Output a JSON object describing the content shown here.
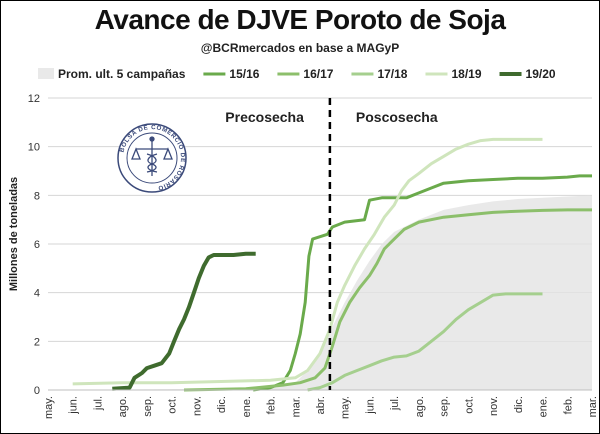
{
  "chart_data": {
    "type": "line",
    "title": "Avance de DJVE Poroto de Soja",
    "subtitle": "@BCRmercados en base a MAGyP",
    "ylabel": "Millones de toneladas",
    "xlabel": "",
    "ylim": [
      0,
      12
    ],
    "yticks": [
      "0",
      "2",
      "4",
      "6",
      "8",
      "10",
      "12"
    ],
    "months": [
      "may.",
      "jun.",
      "jul.",
      "ago.",
      "sep.",
      "oct.",
      "nov.",
      "dic.",
      "ene.",
      "feb.",
      "mar.",
      "abr.",
      "may.",
      "jun.",
      "jul.",
      "ago.",
      "sep.",
      "oct.",
      "nov.",
      "dic.",
      "ene.",
      "feb.",
      "mar."
    ],
    "phases": {
      "before": "Precosecha",
      "after": "Poscosecha",
      "divider_month_index": 11.4
    },
    "grid": "horizontal",
    "legend_position": "top",
    "series": [
      {
        "name": "Prom. ult. 5 campañas",
        "kind": "area",
        "color": "#e9e9e9",
        "points": [
          [
            0,
            0
          ],
          [
            8,
            0.05
          ],
          [
            9,
            0.1
          ],
          [
            10,
            0.3
          ],
          [
            10.5,
            0.8
          ],
          [
            11,
            1.6
          ],
          [
            11.5,
            2.6
          ],
          [
            12,
            3.6
          ],
          [
            12.5,
            4.5
          ],
          [
            13,
            5.3
          ],
          [
            13.5,
            6.0
          ],
          [
            14,
            6.5
          ],
          [
            15,
            7.0
          ],
          [
            16,
            7.4
          ],
          [
            17,
            7.6
          ],
          [
            18,
            7.75
          ],
          [
            19,
            7.85
          ],
          [
            20,
            7.9
          ],
          [
            21,
            7.95
          ],
          [
            22,
            8.0
          ]
        ]
      },
      {
        "name": "15/16",
        "kind": "line",
        "color": "#6aaa4b",
        "points": [
          [
            8.3,
            0
          ],
          [
            9,
            0.1
          ],
          [
            9.5,
            0.3
          ],
          [
            9.8,
            0.8
          ],
          [
            10.0,
            1.5
          ],
          [
            10.2,
            2.3
          ],
          [
            10.4,
            3.6
          ],
          [
            10.55,
            5.5
          ],
          [
            10.7,
            6.2
          ],
          [
            11.0,
            6.3
          ],
          [
            11.3,
            6.4
          ],
          [
            11.5,
            6.7
          ],
          [
            12,
            6.9
          ],
          [
            12.8,
            7.0
          ],
          [
            13.0,
            7.8
          ],
          [
            13.5,
            7.9
          ],
          [
            14.5,
            7.9
          ],
          [
            15.0,
            8.1
          ],
          [
            15.5,
            8.3
          ],
          [
            16,
            8.5
          ],
          [
            17,
            8.6
          ],
          [
            18,
            8.65
          ],
          [
            19,
            8.7
          ],
          [
            20,
            8.7
          ],
          [
            21,
            8.75
          ],
          [
            21.5,
            8.8
          ],
          [
            22,
            8.8
          ]
        ]
      },
      {
        "name": "16/17",
        "kind": "line",
        "color": "#8cbf6b",
        "points": [
          [
            5.5,
            0
          ],
          [
            8,
            0.05
          ],
          [
            9.5,
            0.2
          ],
          [
            10.2,
            0.3
          ],
          [
            10.8,
            0.5
          ],
          [
            11.2,
            0.9
          ],
          [
            11.5,
            1.8
          ],
          [
            11.8,
            2.8
          ],
          [
            12.2,
            3.6
          ],
          [
            12.6,
            4.2
          ],
          [
            13,
            4.7
          ],
          [
            13.3,
            5.2
          ],
          [
            13.6,
            5.8
          ],
          [
            14.0,
            6.2
          ],
          [
            14.4,
            6.6
          ],
          [
            15,
            6.9
          ],
          [
            16,
            7.1
          ],
          [
            17,
            7.2
          ],
          [
            18,
            7.3
          ],
          [
            19,
            7.35
          ],
          [
            20,
            7.38
          ],
          [
            21,
            7.4
          ],
          [
            22,
            7.4
          ]
        ]
      },
      {
        "name": "17/18",
        "kind": "line",
        "color": "#a5cf8e",
        "points": [
          [
            10.5,
            0
          ],
          [
            11,
            0.1
          ],
          [
            11.5,
            0.3
          ],
          [
            12,
            0.6
          ],
          [
            12.5,
            0.8
          ],
          [
            13.0,
            1.0
          ],
          [
            13.5,
            1.2
          ],
          [
            14.0,
            1.35
          ],
          [
            14.5,
            1.4
          ],
          [
            15,
            1.6
          ],
          [
            15.5,
            2.0
          ],
          [
            16,
            2.4
          ],
          [
            16.5,
            2.9
          ],
          [
            17,
            3.3
          ],
          [
            17.5,
            3.6
          ],
          [
            18,
            3.9
          ],
          [
            18.5,
            3.95
          ],
          [
            19,
            3.95
          ],
          [
            20,
            3.95
          ]
        ]
      },
      {
        "name": "18/19",
        "kind": "line",
        "color": "#cfe5bc",
        "points": [
          [
            1,
            0.25
          ],
          [
            3,
            0.3
          ],
          [
            5,
            0.3
          ],
          [
            7,
            0.35
          ],
          [
            9,
            0.4
          ],
          [
            10,
            0.5
          ],
          [
            10.5,
            0.8
          ],
          [
            11.0,
            1.5
          ],
          [
            11.4,
            2.5
          ],
          [
            11.7,
            3.6
          ],
          [
            12.0,
            4.3
          ],
          [
            12.4,
            5.1
          ],
          [
            12.8,
            5.8
          ],
          [
            13.2,
            6.4
          ],
          [
            13.6,
            7.1
          ],
          [
            14.0,
            7.6
          ],
          [
            14.3,
            8.2
          ],
          [
            14.6,
            8.6
          ],
          [
            15.0,
            8.9
          ],
          [
            15.5,
            9.3
          ],
          [
            16,
            9.6
          ],
          [
            16.5,
            9.9
          ],
          [
            17,
            10.1
          ],
          [
            17.5,
            10.25
          ],
          [
            18,
            10.3
          ],
          [
            19,
            10.3
          ],
          [
            20,
            10.3
          ]
        ]
      },
      {
        "name": "19/20",
        "kind": "line",
        "color": "#3f6b2e",
        "points": [
          [
            2.6,
            0.05
          ],
          [
            3.3,
            0.1
          ],
          [
            3.5,
            0.5
          ],
          [
            3.8,
            0.7
          ],
          [
            4.0,
            0.9
          ],
          [
            4.3,
            1.0
          ],
          [
            4.6,
            1.1
          ],
          [
            4.9,
            1.5
          ],
          [
            5.1,
            2.0
          ],
          [
            5.3,
            2.5
          ],
          [
            5.5,
            2.9
          ],
          [
            5.7,
            3.4
          ],
          [
            5.9,
            4.0
          ],
          [
            6.1,
            4.6
          ],
          [
            6.3,
            5.1
          ],
          [
            6.5,
            5.45
          ],
          [
            6.7,
            5.55
          ],
          [
            7.0,
            5.55
          ],
          [
            7.5,
            5.55
          ],
          [
            8.0,
            5.6
          ],
          [
            8.4,
            5.6
          ]
        ]
      }
    ]
  },
  "logo": {
    "ring_text": "BOLSA DE COMERCIO DE ROSARIO",
    "icon": "caduceus-scales-icon"
  }
}
